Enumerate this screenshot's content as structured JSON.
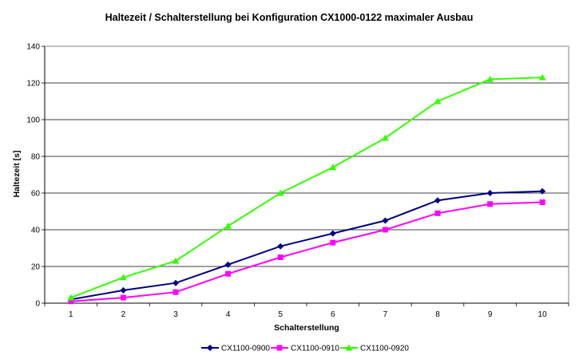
{
  "chart_data": {
    "type": "line",
    "title": "Haltezeit / Schalterstellung bei Konfiguration CX1000-0122 maximaler Ausbau",
    "xlabel": "Schalterstellung",
    "ylabel": "Haltezeit [s]",
    "x": [
      "1",
      "2",
      "3",
      "4",
      "5",
      "6",
      "7",
      "8",
      "9",
      "10"
    ],
    "ylim": [
      0,
      140
    ],
    "yticks": [
      "0",
      "20",
      "40",
      "60",
      "80",
      "100",
      "120",
      "140"
    ],
    "grid": true,
    "legend": "bottom",
    "series": [
      {
        "name": "CX1100-0900",
        "color": "#000080",
        "marker": "diamond",
        "values": [
          2,
          7,
          11,
          21,
          31,
          38,
          45,
          56,
          60,
          61
        ]
      },
      {
        "name": "CX1100-0910",
        "color": "#FF00FF",
        "marker": "square",
        "values": [
          1,
          3,
          6,
          16,
          25,
          33,
          40,
          49,
          54,
          55
        ]
      },
      {
        "name": "CX1100-0920",
        "color": "#33FF00",
        "marker": "triangle",
        "values": [
          3,
          14,
          23,
          42,
          60,
          74,
          90,
          110,
          122,
          123
        ]
      }
    ]
  }
}
